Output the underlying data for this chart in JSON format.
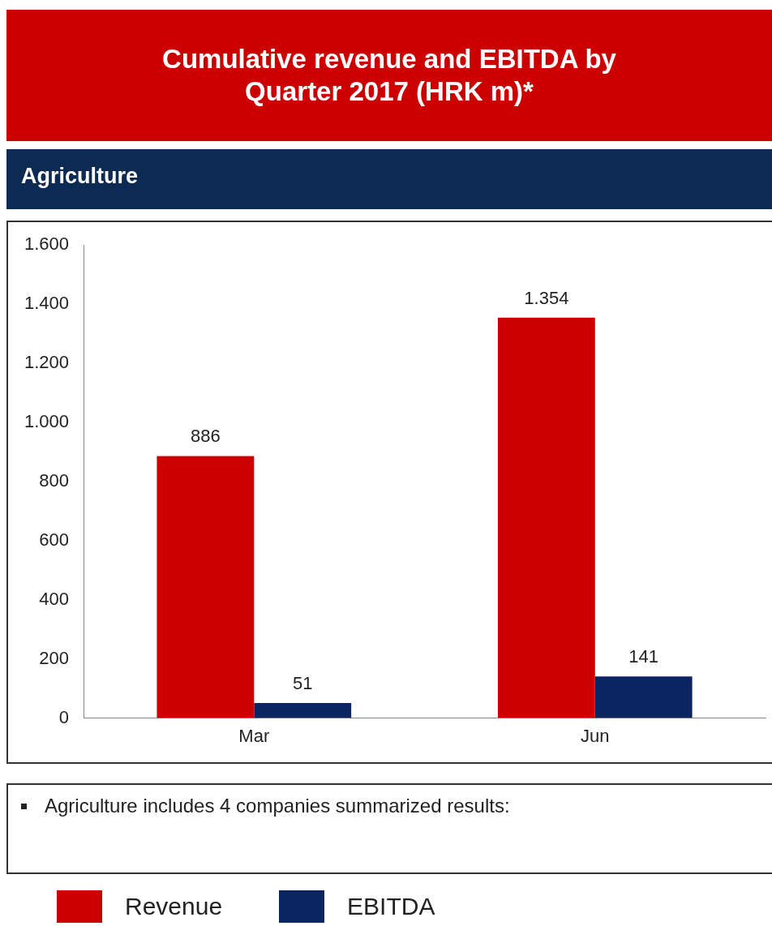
{
  "chart_data": {
    "type": "bar",
    "title": "Cumulative revenue and EBITDA by Quarter 2017 (HRK m)*",
    "subtitle": "Agriculture",
    "categories": [
      "Mar",
      "Jun"
    ],
    "series": [
      {
        "name": "Revenue",
        "color": "#cc0000",
        "values": [
          886,
          1354
        ],
        "value_labels": [
          "886",
          "1.354"
        ]
      },
      {
        "name": "EBITDA",
        "color": "#0b2563",
        "values": [
          51,
          141
        ],
        "value_labels": [
          "51",
          "141"
        ]
      }
    ],
    "ylim": [
      0,
      1600
    ],
    "yticks": [
      {
        "value": 0,
        "label": "0"
      },
      {
        "value": 200,
        "label": "200"
      },
      {
        "value": 400,
        "label": "400"
      },
      {
        "value": 600,
        "label": "600"
      },
      {
        "value": 800,
        "label": "800"
      },
      {
        "value": 1000,
        "label": "1.000"
      },
      {
        "value": 1200,
        "label": "1.200"
      },
      {
        "value": 1400,
        "label": "1.400"
      },
      {
        "value": 1600,
        "label": "1.600"
      }
    ],
    "grid": false,
    "legend": "bottom",
    "annotations": [
      "Agriculture includes 4 companies summarized results:"
    ]
  }
}
